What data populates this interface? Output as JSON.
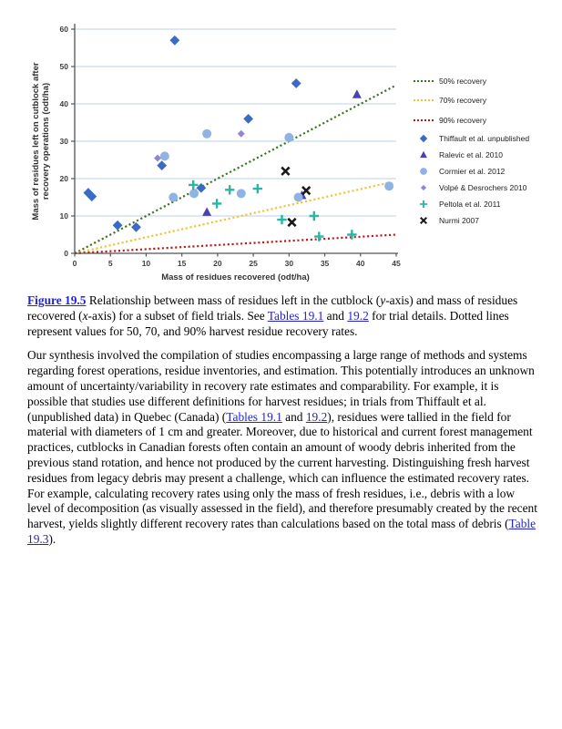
{
  "page": {
    "background": "#ffffff"
  },
  "chart_data": {
    "type": "scatter",
    "xlabel": "Mass of residues recovered (odt/ha)",
    "ylabel": "Mass of residues left on cutblock after recovery operations (odt/ha)",
    "ylabel_lines": [
      "Mass of residues left on cutblock after",
      "recovery operations (odt/ha)"
    ],
    "xlim": [
      0,
      45
    ],
    "ylim": [
      0,
      60
    ],
    "xticks": [
      0,
      5,
      10,
      15,
      20,
      25,
      30,
      35,
      40,
      45
    ],
    "yticks": [
      0,
      10,
      20,
      30,
      40,
      50,
      60
    ],
    "grid": "horizontal",
    "grid_color": "#c7dcee",
    "axis_color": "#555555",
    "legend_position": "right",
    "lines": [
      {
        "name": "50% recovery",
        "color": "#3e7320",
        "style": "dotted",
        "x": [
          0,
          45
        ],
        "y": [
          0,
          45
        ]
      },
      {
        "name": "70% recovery",
        "color": "#eec42e",
        "style": "dotted",
        "x": [
          0,
          44
        ],
        "y": [
          0,
          18.9
        ]
      },
      {
        "name": "90% recovery",
        "color": "#c01616",
        "style": "dotted",
        "x": [
          0,
          45
        ],
        "y": [
          0,
          5
        ]
      }
    ],
    "series": [
      {
        "name": "Thiffault et al. unpublished",
        "marker": "diamond",
        "color": "#3a6bc6",
        "points": [
          [
            1.9,
            16.2
          ],
          [
            2.4,
            15.2
          ],
          [
            6,
            7.5
          ],
          [
            8.6,
            7
          ],
          [
            12.2,
            23.5
          ],
          [
            14,
            57
          ],
          [
            17.7,
            17.5
          ],
          [
            24.3,
            36
          ],
          [
            31,
            45.5
          ]
        ]
      },
      {
        "name": "Ralevic et al. 2010",
        "marker": "triangle",
        "color": "#4c42ae",
        "points": [
          [
            18.5,
            11
          ],
          [
            31.8,
            15.5
          ],
          [
            39.5,
            42.5
          ]
        ]
      },
      {
        "name": "Cormier et al. 2012",
        "marker": "circle",
        "color": "#8fb3e2",
        "points": [
          [
            12.6,
            26
          ],
          [
            13.8,
            15
          ],
          [
            16.7,
            16
          ],
          [
            18.5,
            32
          ],
          [
            23.3,
            16
          ],
          [
            30,
            31
          ],
          [
            31.3,
            15
          ],
          [
            44,
            18
          ]
        ]
      },
      {
        "name": "Volpé & Desrochers 2010",
        "marker": "diamond-small",
        "color": "#9087d2",
        "points": [
          [
            11.6,
            25.5
          ],
          [
            23.3,
            32
          ]
        ]
      },
      {
        "name": "Peltola et al. 2011",
        "marker": "plus",
        "color": "#2ab5a5",
        "points": [
          [
            16.6,
            18.3
          ],
          [
            19.9,
            13.3
          ],
          [
            21.7,
            17
          ],
          [
            25.6,
            17.3
          ],
          [
            29,
            9
          ],
          [
            33.5,
            10
          ],
          [
            34.2,
            4.5
          ],
          [
            38.8,
            5
          ]
        ]
      },
      {
        "name": "Nurmi 2007",
        "marker": "x",
        "color": "#1a1a1a",
        "points": [
          [
            29.5,
            22
          ],
          [
            30.4,
            8.3
          ],
          [
            32.4,
            16.8
          ]
        ]
      }
    ]
  },
  "figure": {
    "caption_segments": [
      {
        "text": "Figure 19.5",
        "link": true,
        "bold": true
      },
      {
        "text": " Relationship between mass of residues left in the cutblock ("
      },
      {
        "text": "y",
        "italic": true
      },
      {
        "text": "-axis) and mass of residues recovered ("
      },
      {
        "text": "x",
        "italic": true
      },
      {
        "text": "-axis) for a subset of field trials. See "
      },
      {
        "text": "Tables 19.1",
        "link": true
      },
      {
        "text": " and "
      },
      {
        "text": "19.2",
        "link": true
      },
      {
        "text": " for trial details. Dotted lines represent values for 50, 70, and 90% harvest residue recovery rates."
      }
    ]
  },
  "paragraph": {
    "segments": [
      {
        "text": "Our synthesis involved the compilation of studies encompassing a large range of methods and systems regarding forest operations, residue inventories, and estimation. This potentially introduces an unknown amount of uncertainty/variability in recovery rate estimates and comparability. For example, it is possible that studies use different definitions for harvest residues; in trials from Thiffault et al. (unpublished data) in Quebec (Canada) ("
      },
      {
        "text": "Tables 19.1",
        "link": true
      },
      {
        "text": " and "
      },
      {
        "text": "19.2",
        "link": true
      },
      {
        "text": "), residues were tallied in the field for material with diameters of 1 cm and greater. Moreover, due to historical and current forest management practices, cutblocks in Canadian forests often contain an amount of woody debris inherited from the previous stand rotation, and hence not produced by the current harvesting. Distinguishing fresh harvest residues from legacy debris may present a challenge, which can influence the estimated recovery rates. For example, calculating recovery rates using only the mass of fresh residues, i.e., debris with a low level of decomposition (as visually assessed in the field), and therefore presumably created by the recent harvest, yields slightly different recovery rates than calculations based on the total mass of debris ("
      },
      {
        "text": "Table 19.3",
        "link": true
      },
      {
        "text": ")."
      }
    ]
  }
}
